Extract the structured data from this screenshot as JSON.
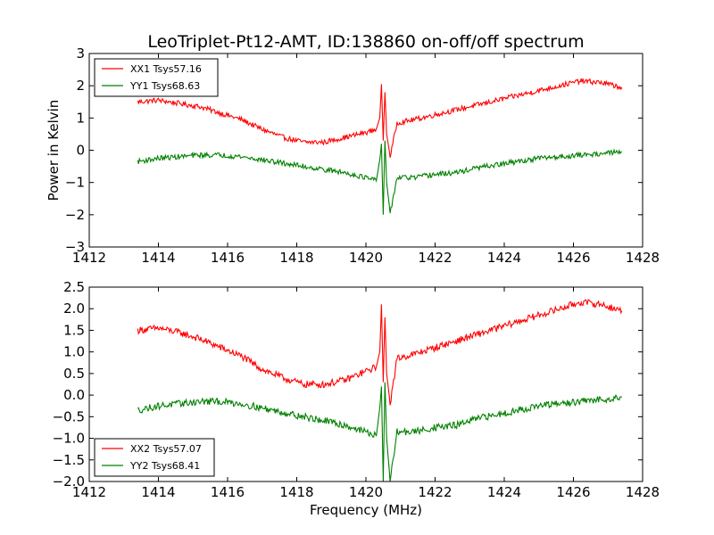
{
  "figure": {
    "title": "LeoTriplet-Pt12-AMT, ID:138860 on-off/off spectrum",
    "xlabel": "Frequency (MHz)"
  },
  "colors": {
    "xx": "#ff0000",
    "yy": "#008000"
  },
  "chart_data": [
    {
      "type": "line",
      "title": "LeoTriplet-Pt12-AMT, ID:138860 on-off/off spectrum",
      "xlabel": "",
      "ylabel": "Power in Kelvin",
      "xlim": [
        1412,
        1428
      ],
      "ylim": [
        -3,
        3
      ],
      "xticks": [
        "1412",
        "1414",
        "1416",
        "1418",
        "1420",
        "1422",
        "1424",
        "1426",
        "1428"
      ],
      "yticks": [
        "3",
        "2",
        "1",
        "0",
        "−1",
        "−2",
        "−3"
      ],
      "legend": {
        "placement": "top-left"
      },
      "grid": false,
      "series": [
        {
          "name": "XX1 Tsys57.16",
          "color": "#ff0000",
          "x": [
            1413.4,
            1414.0,
            1414.6,
            1415.2,
            1415.8,
            1416.4,
            1417.0,
            1417.6,
            1418.2,
            1418.8,
            1419.4,
            1420.0,
            1420.3,
            1420.4,
            1420.45,
            1420.5,
            1420.55,
            1420.6,
            1420.7,
            1420.9,
            1421.4,
            1422.0,
            1422.6,
            1423.2,
            1423.8,
            1424.4,
            1425.0,
            1425.6,
            1426.2,
            1426.8,
            1427.4
          ],
          "y": [
            1.5,
            1.55,
            1.45,
            1.35,
            1.15,
            0.95,
            0.65,
            0.4,
            0.25,
            0.25,
            0.4,
            0.55,
            0.65,
            1.0,
            2.05,
            0.3,
            1.8,
            0.5,
            -0.2,
            0.85,
            0.95,
            1.1,
            1.25,
            1.4,
            1.55,
            1.7,
            1.85,
            2.0,
            2.15,
            2.1,
            1.95
          ]
        },
        {
          "name": "YY1 Tsys68.63",
          "color": "#008000",
          "x": [
            1413.4,
            1414.0,
            1414.6,
            1415.2,
            1415.8,
            1416.4,
            1417.0,
            1417.6,
            1418.2,
            1418.8,
            1419.4,
            1420.0,
            1420.3,
            1420.4,
            1420.45,
            1420.5,
            1420.55,
            1420.6,
            1420.7,
            1420.9,
            1421.4,
            1422.0,
            1422.6,
            1423.2,
            1423.8,
            1424.4,
            1425.0,
            1425.6,
            1426.2,
            1426.8,
            1427.4
          ],
          "y": [
            -0.35,
            -0.25,
            -0.2,
            -0.15,
            -0.15,
            -0.2,
            -0.3,
            -0.4,
            -0.5,
            -0.6,
            -0.7,
            -0.85,
            -0.95,
            -0.3,
            0.2,
            -2.0,
            0.3,
            -1.0,
            -1.95,
            -0.85,
            -0.85,
            -0.75,
            -0.7,
            -0.55,
            -0.45,
            -0.35,
            -0.25,
            -0.2,
            -0.15,
            -0.1,
            -0.05
          ]
        }
      ]
    },
    {
      "type": "line",
      "title": "",
      "xlabel": "Frequency (MHz)",
      "ylabel": "",
      "xlim": [
        1412,
        1428
      ],
      "ylim": [
        -2.0,
        2.5
      ],
      "xticks": [
        "1412",
        "1414",
        "1416",
        "1418",
        "1420",
        "1422",
        "1424",
        "1426",
        "1428"
      ],
      "yticks": [
        "2.5",
        "2.0",
        "1.5",
        "1.0",
        "0.5",
        "0.0",
        "−0.5",
        "−1.0",
        "−1.5",
        "−2.0"
      ],
      "legend": {
        "placement": "bottom-left"
      },
      "grid": false,
      "series": [
        {
          "name": "XX2 Tsys57.07",
          "color": "#ff0000",
          "x": [
            1413.4,
            1414.0,
            1414.6,
            1415.2,
            1415.8,
            1416.4,
            1417.0,
            1417.6,
            1418.2,
            1418.8,
            1419.4,
            1420.0,
            1420.3,
            1420.4,
            1420.45,
            1420.5,
            1420.55,
            1420.6,
            1420.7,
            1420.9,
            1421.4,
            1422.0,
            1422.6,
            1423.2,
            1423.8,
            1424.4,
            1425.0,
            1425.6,
            1426.2,
            1426.8,
            1427.4
          ],
          "y": [
            1.5,
            1.55,
            1.45,
            1.3,
            1.1,
            0.9,
            0.6,
            0.4,
            0.25,
            0.25,
            0.35,
            0.55,
            0.65,
            1.0,
            2.1,
            0.3,
            1.8,
            0.5,
            -0.2,
            0.85,
            0.95,
            1.1,
            1.25,
            1.4,
            1.55,
            1.7,
            1.85,
            2.0,
            2.15,
            2.1,
            1.95
          ]
        },
        {
          "name": "YY2 Tsys68.41",
          "color": "#008000",
          "x": [
            1413.4,
            1414.0,
            1414.6,
            1415.2,
            1415.8,
            1416.4,
            1417.0,
            1417.6,
            1418.2,
            1418.8,
            1419.4,
            1420.0,
            1420.3,
            1420.4,
            1420.45,
            1420.5,
            1420.55,
            1420.6,
            1420.7,
            1420.9,
            1421.4,
            1422.0,
            1422.6,
            1423.2,
            1423.8,
            1424.4,
            1425.0,
            1425.6,
            1426.2,
            1426.8,
            1427.4
          ],
          "y": [
            -0.35,
            -0.25,
            -0.2,
            -0.15,
            -0.15,
            -0.2,
            -0.3,
            -0.4,
            -0.5,
            -0.6,
            -0.7,
            -0.85,
            -0.95,
            -0.3,
            0.2,
            -2.0,
            0.3,
            -1.0,
            -2.0,
            -0.85,
            -0.85,
            -0.75,
            -0.7,
            -0.55,
            -0.45,
            -0.35,
            -0.25,
            -0.2,
            -0.15,
            -0.1,
            -0.05
          ]
        }
      ]
    }
  ]
}
